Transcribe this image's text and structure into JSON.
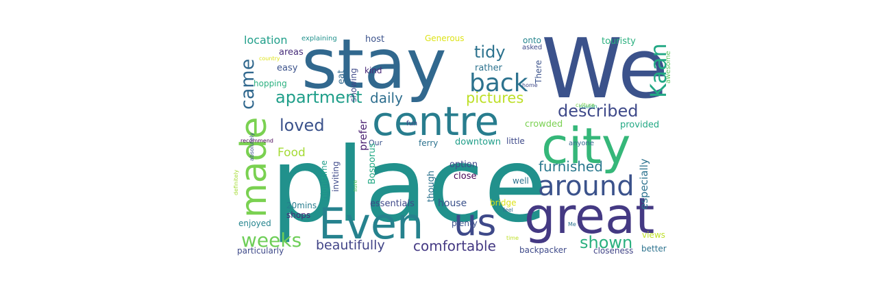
{
  "wordcloud": {
    "background": "#ffffff",
    "words": [
      {
        "text": "place",
        "color": "#21918c"
      },
      {
        "text": "We",
        "color": "#3b528b"
      },
      {
        "text": "stay",
        "color": "#31688e"
      },
      {
        "text": "city",
        "color": "#35b779"
      },
      {
        "text": "great",
        "color": "#443983"
      },
      {
        "text": "Even",
        "color": "#26828e"
      },
      {
        "text": "centre",
        "color": "#287d8e"
      },
      {
        "text": "us",
        "color": "#3e4989"
      },
      {
        "text": "made",
        "color": "#7ad151"
      },
      {
        "text": "around",
        "color": "#3b528b"
      },
      {
        "text": "back",
        "color": "#2c728e"
      },
      {
        "text": "weeks",
        "color": "#6ece58"
      },
      {
        "text": "apartment",
        "color": "#1f9e89"
      },
      {
        "text": "Kaan",
        "color": "#22a884"
      },
      {
        "text": "came",
        "color": "#31688e"
      },
      {
        "text": "described",
        "color": "#3e4989"
      },
      {
        "text": "shown",
        "color": "#2ab07f"
      },
      {
        "text": "loved",
        "color": "#3b528b"
      },
      {
        "text": "tidy",
        "color": "#2c728e"
      },
      {
        "text": "furnished",
        "color": "#2a788e"
      },
      {
        "text": "pictures",
        "color": "#bddf26"
      },
      {
        "text": "beautifully",
        "color": "#414487"
      },
      {
        "text": "comfortable",
        "color": "#443983"
      },
      {
        "text": "daily",
        "color": "#2e6e8e"
      },
      {
        "text": "Food",
        "color": "#a5db36"
      },
      {
        "text": "location",
        "color": "#1f9e89"
      },
      {
        "text": "essentials",
        "color": "#3e4989"
      },
      {
        "text": "house",
        "color": "#3b528b"
      },
      {
        "text": "areas",
        "color": "#472d7b"
      },
      {
        "text": "host",
        "color": "#3b528b"
      },
      {
        "text": "Generous",
        "color": "#dde318"
      },
      {
        "text": "touristy",
        "color": "#2ab07f"
      },
      {
        "text": "onto",
        "color": "#25848e"
      },
      {
        "text": "asked",
        "color": "#3e4989"
      },
      {
        "text": "easy",
        "color": "#3b528b"
      },
      {
        "text": "kind",
        "color": "#482878"
      },
      {
        "text": "eat",
        "color": "#31688e"
      },
      {
        "text": "showing",
        "color": "#3e4989"
      },
      {
        "text": "rather",
        "color": "#2c728e"
      },
      {
        "text": "There",
        "color": "#3b528b"
      },
      {
        "text": "hopping",
        "color": "#2ab07f"
      },
      {
        "text": "crowded",
        "color": "#7ad151"
      },
      {
        "text": "provided",
        "color": "#22a884"
      },
      {
        "text": "prefer",
        "color": "#481f70"
      },
      {
        "text": "Our",
        "color": "#3b528b"
      },
      {
        "text": "fun",
        "color": "#414487"
      },
      {
        "text": "ferry",
        "color": "#2c728e"
      },
      {
        "text": "downtown",
        "color": "#1f9e89"
      },
      {
        "text": "little",
        "color": "#3e4989"
      },
      {
        "text": "anyone",
        "color": "#31688e"
      },
      {
        "text": "especially",
        "color": "#2c728e"
      },
      {
        "text": "nighttime",
        "color": "#1f9e89"
      },
      {
        "text": "inviting",
        "color": "#3e4989"
      },
      {
        "text": "Bosporus",
        "color": "#22a884"
      },
      {
        "text": "though",
        "color": "#2c728e"
      },
      {
        "text": "option",
        "color": "#3e4989"
      },
      {
        "text": "close",
        "color": "#440154"
      },
      {
        "text": "well",
        "color": "#2c728e"
      },
      {
        "text": "20mins",
        "color": "#287d8e"
      },
      {
        "text": "shops",
        "color": "#482878"
      },
      {
        "text": "enjoyed",
        "color": "#25848e"
      },
      {
        "text": "bridge",
        "color": "#dde318"
      },
      {
        "text": "plenty",
        "color": "#3b528b"
      },
      {
        "text": "particularly",
        "color": "#3e4989"
      },
      {
        "text": "backpacker",
        "color": "#3e4989"
      },
      {
        "text": "closeness",
        "color": "#414487"
      },
      {
        "text": "better",
        "color": "#2c728e"
      },
      {
        "text": "views",
        "color": "#bddf26"
      },
      {
        "text": "explaining",
        "color": "#21918c"
      },
      {
        "text": "country",
        "color": "#dde318"
      },
      {
        "text": "awesome",
        "color": "#5ec962"
      },
      {
        "text": "home",
        "color": "#3e4989"
      },
      {
        "text": "couldn",
        "color": "#1f9e89"
      },
      {
        "text": "culture",
        "color": "#7ad151"
      },
      {
        "text": "absolutely",
        "color": "#3b528b"
      },
      {
        "text": "recommend",
        "color": "#440154"
      },
      {
        "text": "definitely",
        "color": "#a5db36"
      },
      {
        "text": "sure",
        "color": "#5ec962"
      },
      {
        "text": "feel",
        "color": "#31688e"
      },
      {
        "text": "time",
        "color": "#bddf26"
      },
      {
        "text": "Me",
        "color": "#2c728e"
      }
    ]
  }
}
